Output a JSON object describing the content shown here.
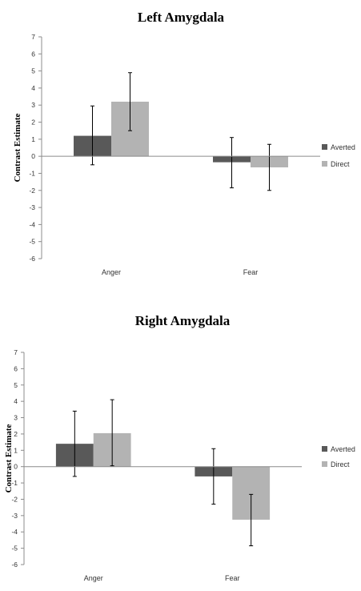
{
  "chart_data": [
    {
      "type": "bar",
      "title": "Left Amygdala",
      "ylabel": "Contrast Estimate",
      "xlabel": "",
      "categories": [
        "Anger",
        "Fear"
      ],
      "ylim": [
        -6,
        7
      ],
      "yticks": [
        7,
        6,
        5,
        4,
        3,
        2,
        1,
        0,
        -1,
        -2,
        -3,
        -4,
        -5,
        -6
      ],
      "legend_position": "right",
      "grid": false,
      "series": [
        {
          "name": "Averted",
          "color": "#595959",
          "values": [
            1.2,
            -0.35
          ],
          "err_low": [
            -0.5,
            -1.85
          ],
          "err_high": [
            2.95,
            1.1
          ]
        },
        {
          "name": "Direct",
          "color": "#b3b3b3",
          "values": [
            3.2,
            -0.65
          ],
          "err_low": [
            1.5,
            -2.0
          ],
          "err_high": [
            4.9,
            0.7
          ]
        }
      ]
    },
    {
      "type": "bar",
      "title": "Right Amygdala",
      "ylabel": "Contrast Estimate",
      "xlabel": "",
      "categories": [
        "Anger",
        "Fear"
      ],
      "ylim": [
        -6,
        7
      ],
      "yticks": [
        7,
        6,
        5,
        4,
        3,
        2,
        1,
        0,
        -1,
        -2,
        -3,
        -4,
        -5,
        -6
      ],
      "legend_position": "right",
      "grid": false,
      "series": [
        {
          "name": "Averted",
          "color": "#595959",
          "values": [
            1.4,
            -0.6
          ],
          "err_low": [
            -0.6,
            -2.3
          ],
          "err_high": [
            3.4,
            1.1
          ]
        },
        {
          "name": "Direct",
          "color": "#b3b3b3",
          "values": [
            2.05,
            -3.25
          ],
          "err_low": [
            0.05,
            -4.85
          ],
          "err_high": [
            4.1,
            -1.7
          ]
        }
      ]
    }
  ]
}
